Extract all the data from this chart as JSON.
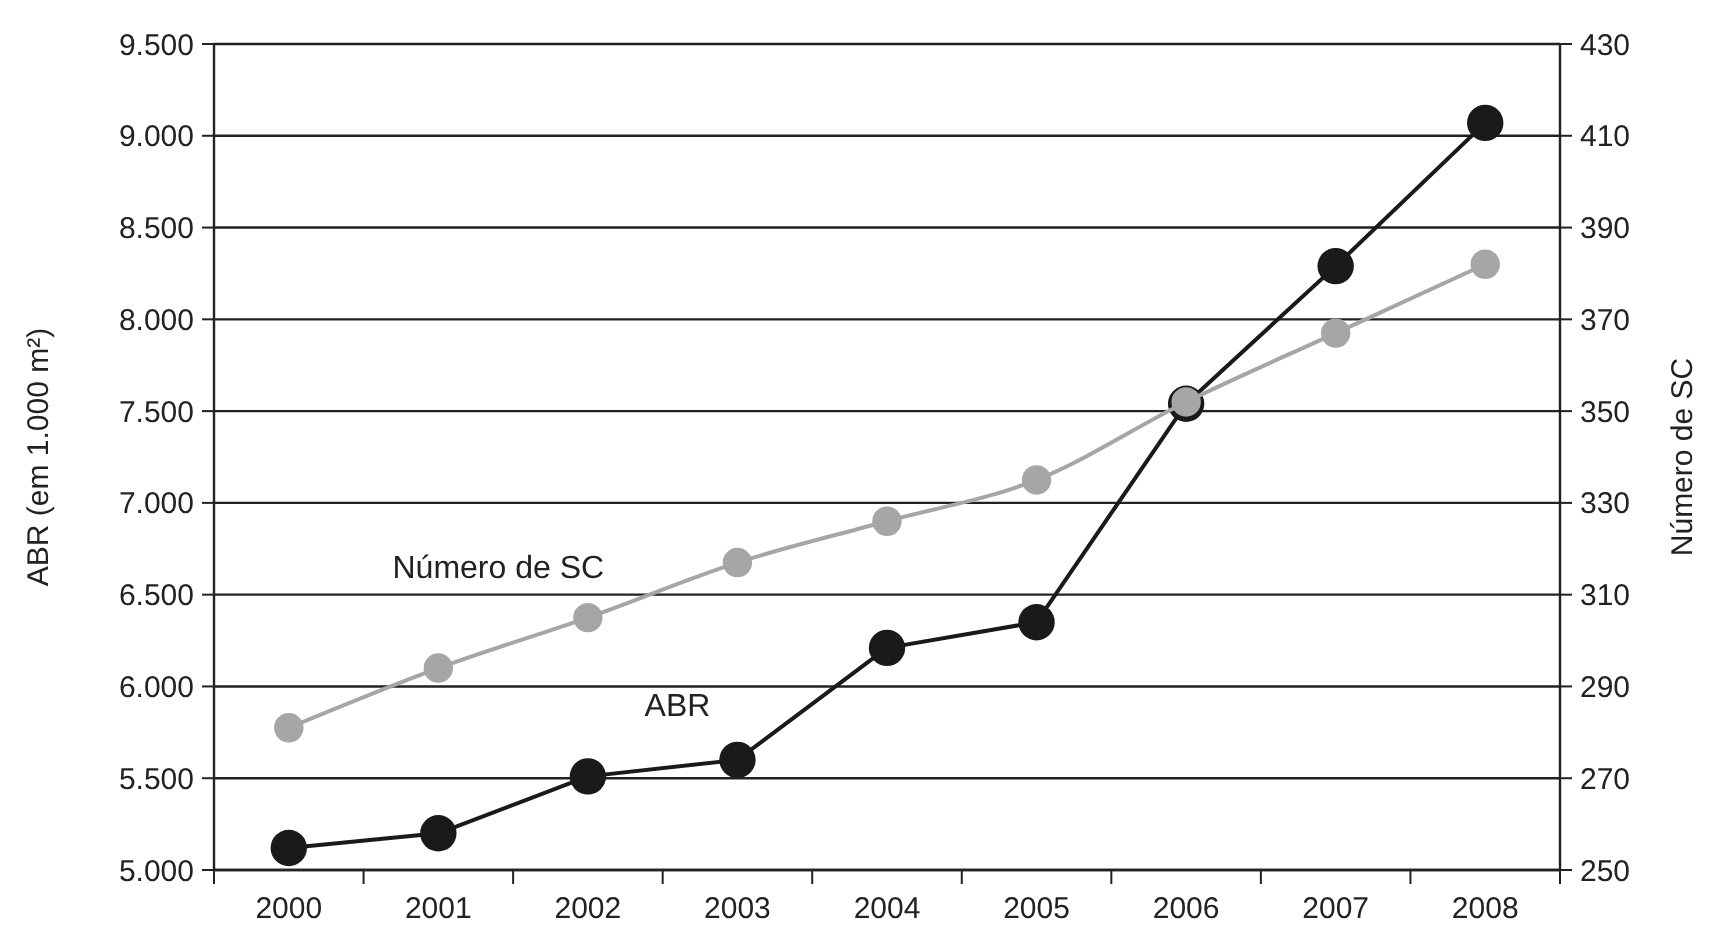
{
  "chart_data": {
    "type": "line",
    "ylabel": "ABR (em 1.000 m²)",
    "y2label": "Número de SC",
    "categories": [
      "2000",
      "2001",
      "2002",
      "2003",
      "2004",
      "2005",
      "2006",
      "2007",
      "2008"
    ],
    "series": [
      {
        "name": "ABR",
        "color": "#1a1a1a",
        "values": [
          5120,
          5200,
          5510,
          5600,
          6210,
          6350,
          7540,
          8290,
          9070
        ]
      },
      {
        "name": "Número de SC",
        "color": "#a6a6a6",
        "axis": "y2",
        "values": [
          281,
          294,
          305,
          317,
          326,
          335,
          352,
          367,
          382
        ]
      }
    ],
    "ylim": [
      5000,
      9500
    ],
    "yticks": [
      {
        "value": 5000,
        "label": "5.000"
      },
      {
        "value": 5500,
        "label": "5.500"
      },
      {
        "value": 6000,
        "label": "6.000"
      },
      {
        "value": 6500,
        "label": "6.500"
      },
      {
        "value": 7000,
        "label": "7.000"
      },
      {
        "value": 7500,
        "label": "7.500"
      },
      {
        "value": 8000,
        "label": "8.000"
      },
      {
        "value": 8500,
        "label": "8.500"
      },
      {
        "value": 9000,
        "label": "9.000"
      },
      {
        "value": 9500,
        "label": "9.500"
      }
    ],
    "y2lim": [
      250,
      430
    ],
    "y2ticks": [
      250,
      270,
      290,
      310,
      330,
      350,
      370,
      390,
      410,
      430
    ],
    "grid": "y",
    "marker": "circle",
    "line_style": "solid",
    "legend": false
  }
}
